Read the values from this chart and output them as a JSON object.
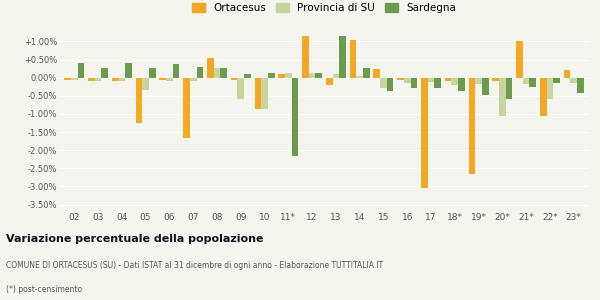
{
  "years": [
    "02",
    "03",
    "04",
    "05",
    "06",
    "07",
    "08",
    "09",
    "10",
    "11*",
    "12",
    "13",
    "14",
    "15",
    "16",
    "17",
    "18*",
    "19*",
    "20*",
    "21*",
    "22*",
    "23*"
  ],
  "ortacesus": [
    -0.05,
    -0.08,
    -0.08,
    -1.25,
    -0.05,
    -1.65,
    0.55,
    -0.05,
    -0.85,
    0.1,
    1.15,
    -0.2,
    1.05,
    0.25,
    -0.05,
    -3.05,
    -0.1,
    -2.65,
    -0.1,
    1.0,
    -1.05,
    0.2
  ],
  "provincia": [
    -0.05,
    -0.08,
    -0.08,
    -0.35,
    -0.08,
    -0.08,
    0.27,
    -0.58,
    -0.85,
    0.12,
    0.12,
    0.1,
    0.05,
    -0.28,
    -0.15,
    -0.12,
    -0.2,
    -0.18,
    -1.05,
    -0.18,
    -0.6,
    -0.15
  ],
  "sardegna": [
    0.4,
    0.28,
    0.4,
    0.27,
    0.37,
    0.3,
    0.28,
    0.1,
    0.12,
    -2.15,
    0.12,
    1.42,
    0.28,
    -0.37,
    -0.28,
    -0.28,
    -0.37,
    -0.48,
    -0.6,
    -0.25,
    -0.15,
    -0.42
  ],
  "color_ortacesus": "#f5a623",
  "color_provincia": "#c8d5a0",
  "color_sardegna": "#6d9b4e",
  "title": "Variazione percentuale della popolazione",
  "subtitle": "COMUNE DI ORTACESUS (SU) - Dati ISTAT al 31 dicembre di ogni anno - Elaborazione TUTTITALIA.IT",
  "footnote": "(*) post-censimento",
  "legend_labels": [
    "Ortacesus",
    "Provincia di SU",
    "Sardegna"
  ],
  "ylim": [
    -3.65,
    1.15
  ],
  "yticks": [
    -3.5,
    -3.0,
    -2.5,
    -2.0,
    -1.5,
    -1.0,
    -0.5,
    0.0,
    0.5,
    1.0
  ],
  "ytick_labels": [
    "-3.50%",
    "-3.00%",
    "-2.50%",
    "-2.00%",
    "-1.50%",
    "-1.00%",
    "-0.50%",
    "0.00%",
    "+0.50%",
    "+1.00%"
  ],
  "background_color": "#f5f5f0",
  "bar_width": 0.28,
  "grid_color": "#ffffff",
  "text_color": "#555555",
  "title_color": "#111111",
  "subtitle_color": "#555555"
}
